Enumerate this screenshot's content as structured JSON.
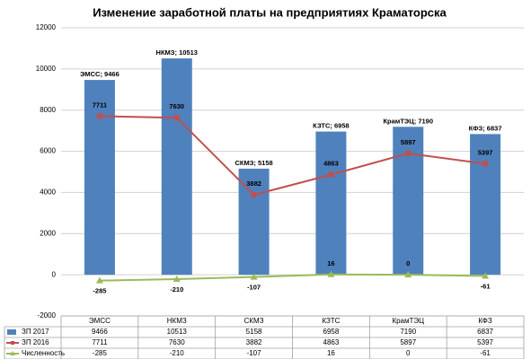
{
  "chart_data": {
    "type": "bar_line_table",
    "title": "Изменение заработной платы на предприятиях Краматорска",
    "categories": [
      "ЭМСС",
      "НКМЗ",
      "СКМЗ",
      "КЗТС",
      "КрамТЭЦ",
      "КФЗ"
    ],
    "series": [
      {
        "name": "ЗП 2017",
        "type": "bar",
        "color": "#4f81bd",
        "values": [
          9466,
          10513,
          5158,
          6958,
          7190,
          6837
        ],
        "value_labels": [
          "ЭМСС; 9466",
          "НКМЗ; 10513",
          "СКМЗ; 5158",
          "КЗТС; 6958",
          "КрамТЭЦ; 7190",
          "КФЗ; 6837"
        ]
      },
      {
        "name": "ЗП 2016",
        "type": "line",
        "marker": "square",
        "color": "#c0504d",
        "values": [
          7711,
          7630,
          3882,
          4863,
          5897,
          5397
        ]
      },
      {
        "name": "Численность",
        "type": "line",
        "marker": "triangle",
        "color": "#9bbb59",
        "values": [
          -285,
          -210,
          -107,
          16,
          0,
          -61
        ]
      }
    ],
    "ylim": [
      -2000,
      12000
    ],
    "yticks": [
      -2000,
      0,
      2000,
      4000,
      6000,
      8000,
      10000,
      12000
    ],
    "grid": true
  }
}
